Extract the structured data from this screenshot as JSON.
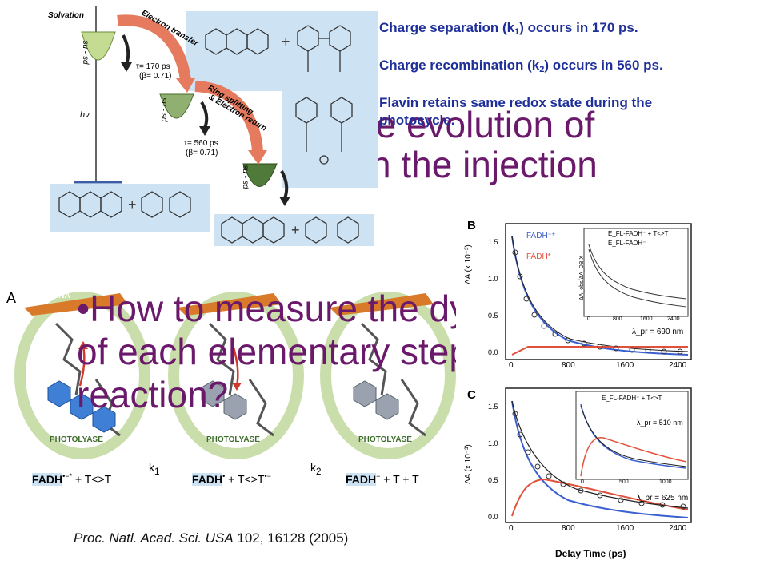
{
  "background_title": {
    "line1": "he evolution of",
    "line2": "ith the injection"
  },
  "notes": {
    "p1a": "Charge separation (k",
    "p1sub": "1",
    "p1b": ") occurs in 170 ps.",
    "p2a": "Charge recombination (k",
    "p2sub": "2",
    "p2b": ") occurs in 560 ps.",
    "p3": "Flavin retains same redox state during the photocycle."
  },
  "bullet": {
    "line1": "•How to measure the dy",
    "line2": "of each elementary step",
    "line3": "reaction?"
  },
  "scheme": {
    "solvation": "Solvation",
    "ps_ns": "ps - ns",
    "hv": "hν",
    "electron_transfer": "Electron transfer",
    "tau1": "τ= 170 ps",
    "beta1": "(β= 0.71)",
    "ring_splitting": "Ring splitting",
    "electron_return": "& Electron return",
    "tau2": "τ= 560 ps",
    "beta2": "(β= 0.71)"
  },
  "photolyase": {
    "panel_label": "A",
    "dna": "DNA",
    "enzyme": "PHOTOLYASE",
    "k1": "k",
    "k1sub": "1",
    "k2": "k",
    "k2sub": "2",
    "species1": "FADH",
    "species1sup": "•−*",
    "t1": " + T<>T",
    "species2": "FADH",
    "species2sup": "•",
    "t2": " + T<>T",
    "t2sup": "•−",
    "species3": "FADH",
    "species3sup": "−",
    "t3": " + T + T"
  },
  "citation": {
    "journal": "Proc. Natl. Acad. Sci. USA",
    "ref": " 102, 16128 (2005)"
  },
  "plots": {
    "panel_b": "B",
    "panel_c": "C",
    "ylabel": "ΔA (x 10⁻³)",
    "xlabel": "Delay Time (ps)",
    "b_legend1": "FADH⁻*",
    "b_legend2": "FADH*",
    "b_inset_legend1": "E_FL-FADH⁻ + T<>T",
    "b_inset_legend2": "E_FL-FADH⁻",
    "b_inset_ylabel": "ΔA_obs/ΔA_DBIX",
    "b_lambda": "λ_pr = 690 nm",
    "c_inset_legend": "E_FL-FADH⁻ + T<>T",
    "c_lambda_inset": "λ_pr = 510 nm",
    "c_lambda": "λ_pr = 625 nm",
    "x_ticks": [
      "0",
      "800",
      "1600",
      "2400"
    ],
    "inset_x_ticks": [
      "0",
      "800",
      "1600",
      "2400"
    ],
    "c_inset_x_ticks": [
      "0",
      "500",
      "1000"
    ],
    "y_ticks": [
      "0.0",
      "0.5",
      "1.0",
      "1.5"
    ],
    "colors": {
      "blue": "#3a5fd0",
      "red": "#e0503a",
      "black": "#222222"
    }
  }
}
